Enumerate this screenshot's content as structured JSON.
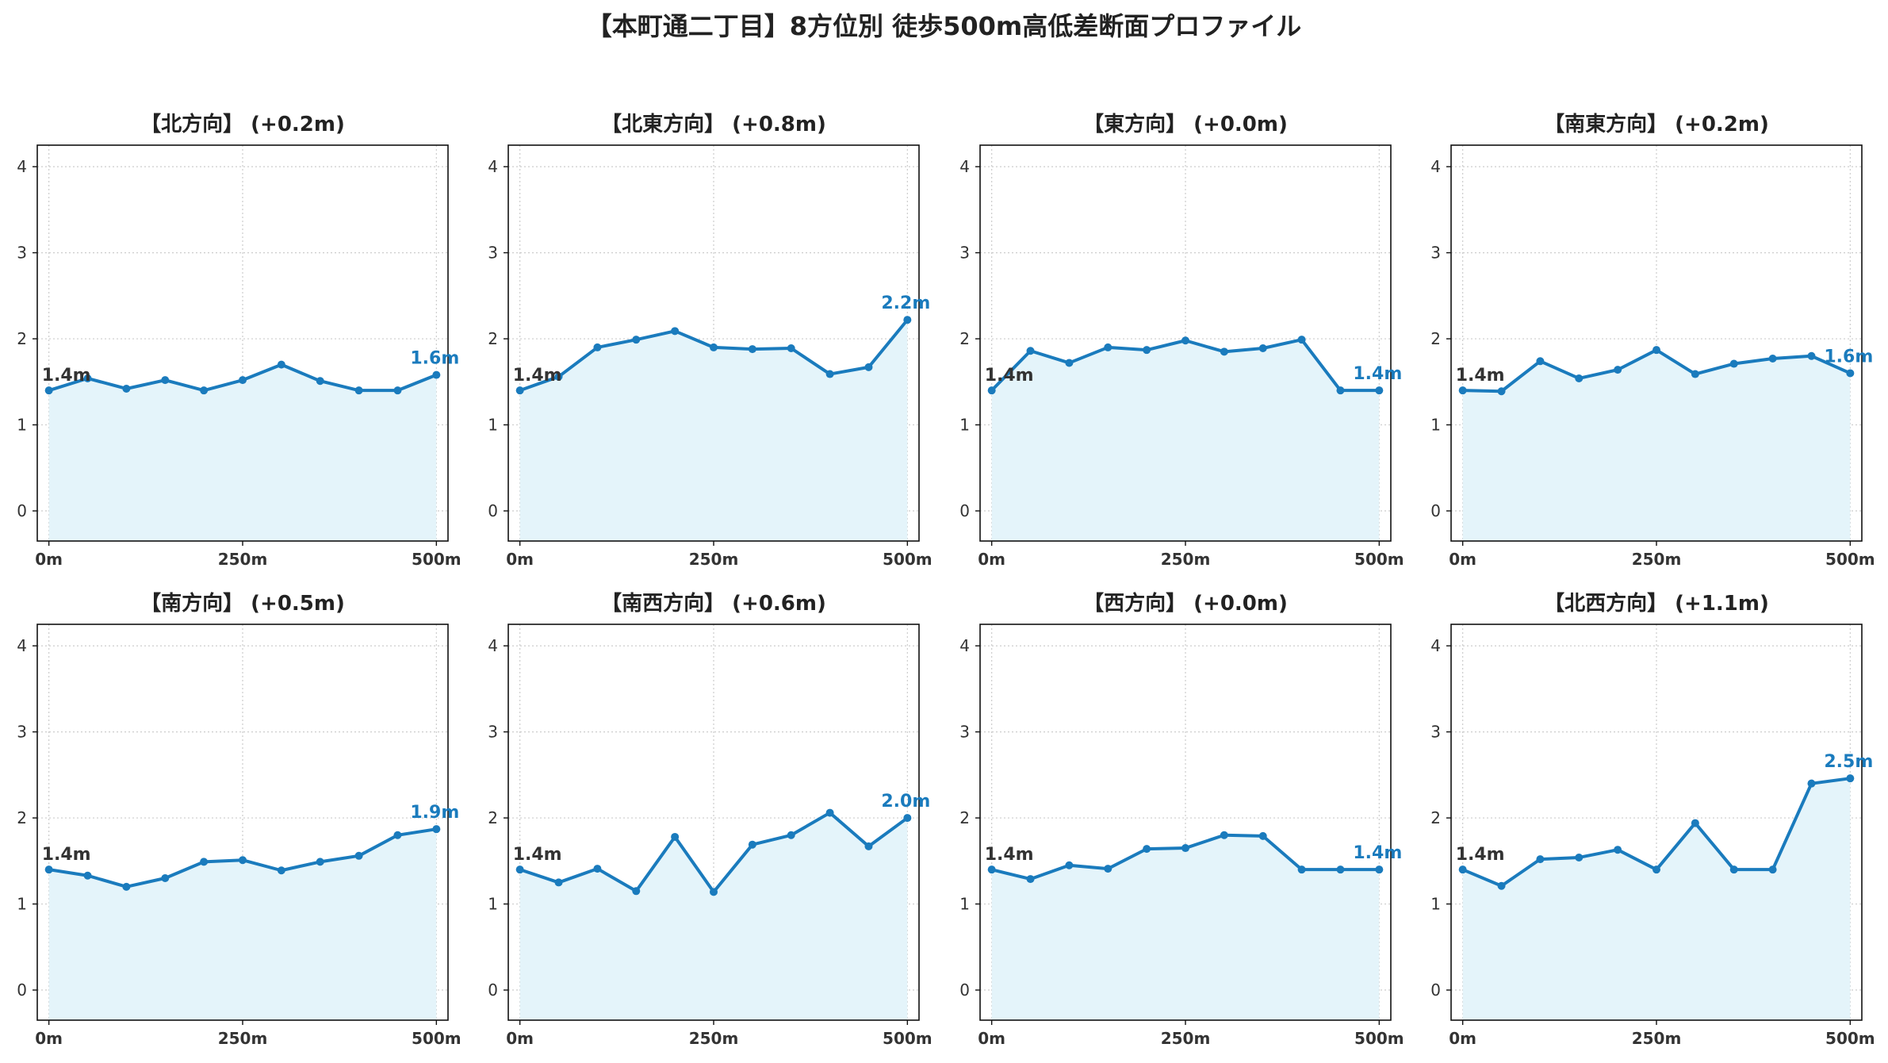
{
  "chart_data": {
    "type": "line",
    "title": "【本町通二丁目】8方位別 徒歩500m高低差断面プロファイル",
    "x_ticks": [
      "0m",
      "250m",
      "500m"
    ],
    "xlim": [
      -15,
      515
    ],
    "ylim": [
      -0.35,
      4.25
    ],
    "y_ticks": [
      "0",
      "1",
      "2",
      "3",
      "4"
    ],
    "grid": true,
    "colors": {
      "line": "#1a7bbd",
      "fill": "#e4f4fa",
      "end_label": "#1a7bbd"
    },
    "panels": [
      {
        "title": "【北方向】 (+0.2m)",
        "start_label": "1.4m",
        "end_label": "1.6m",
        "x": [
          0,
          50,
          100,
          150,
          200,
          250,
          300,
          350,
          400,
          450,
          500
        ],
        "y": [
          1.4,
          1.54,
          1.42,
          1.52,
          1.4,
          1.52,
          1.7,
          1.51,
          1.4,
          1.4,
          1.58
        ]
      },
      {
        "title": "【北東方向】 (+0.8m)",
        "start_label": "1.4m",
        "end_label": "2.2m",
        "x": [
          0,
          50,
          100,
          150,
          200,
          250,
          300,
          350,
          400,
          450,
          500
        ],
        "y": [
          1.4,
          1.56,
          1.9,
          1.99,
          2.09,
          1.9,
          1.88,
          1.89,
          1.59,
          1.67,
          2.22
        ]
      },
      {
        "title": "【東方向】 (+0.0m)",
        "start_label": "1.4m",
        "end_label": "1.4m",
        "x": [
          0,
          50,
          100,
          150,
          200,
          250,
          300,
          350,
          400,
          450,
          500
        ],
        "y": [
          1.4,
          1.86,
          1.72,
          1.9,
          1.87,
          1.98,
          1.85,
          1.89,
          1.99,
          1.4,
          1.4
        ]
      },
      {
        "title": "【南東方向】 (+0.2m)",
        "start_label": "1.4m",
        "end_label": "1.6m",
        "x": [
          0,
          50,
          100,
          150,
          200,
          250,
          300,
          350,
          400,
          450,
          500
        ],
        "y": [
          1.4,
          1.39,
          1.74,
          1.54,
          1.64,
          1.87,
          1.59,
          1.71,
          1.77,
          1.8,
          1.6
        ]
      },
      {
        "title": "【南方向】 (+0.5m)",
        "start_label": "1.4m",
        "end_label": "1.9m",
        "x": [
          0,
          50,
          100,
          150,
          200,
          250,
          300,
          350,
          400,
          450,
          500
        ],
        "y": [
          1.4,
          1.33,
          1.2,
          1.3,
          1.49,
          1.51,
          1.39,
          1.49,
          1.56,
          1.8,
          1.87
        ]
      },
      {
        "title": "【南西方向】 (+0.6m)",
        "start_label": "1.4m",
        "end_label": "2.0m",
        "x": [
          0,
          50,
          100,
          150,
          200,
          250,
          300,
          350,
          400,
          450,
          500
        ],
        "y": [
          1.4,
          1.25,
          1.41,
          1.15,
          1.78,
          1.14,
          1.69,
          1.8,
          2.06,
          1.67,
          2.0
        ]
      },
      {
        "title": "【西方向】 (+0.0m)",
        "start_label": "1.4m",
        "end_label": "1.4m",
        "x": [
          0,
          50,
          100,
          150,
          200,
          250,
          300,
          350,
          400,
          450,
          500
        ],
        "y": [
          1.4,
          1.29,
          1.45,
          1.41,
          1.64,
          1.65,
          1.8,
          1.79,
          1.4,
          1.4,
          1.4
        ]
      },
      {
        "title": "【北西方向】 (+1.1m)",
        "start_label": "1.4m",
        "end_label": "2.5m",
        "x": [
          0,
          50,
          100,
          150,
          200,
          250,
          300,
          350,
          400,
          450,
          500
        ],
        "y": [
          1.4,
          1.21,
          1.52,
          1.54,
          1.63,
          1.4,
          1.94,
          1.4,
          1.4,
          2.4,
          2.46
        ]
      }
    ]
  }
}
